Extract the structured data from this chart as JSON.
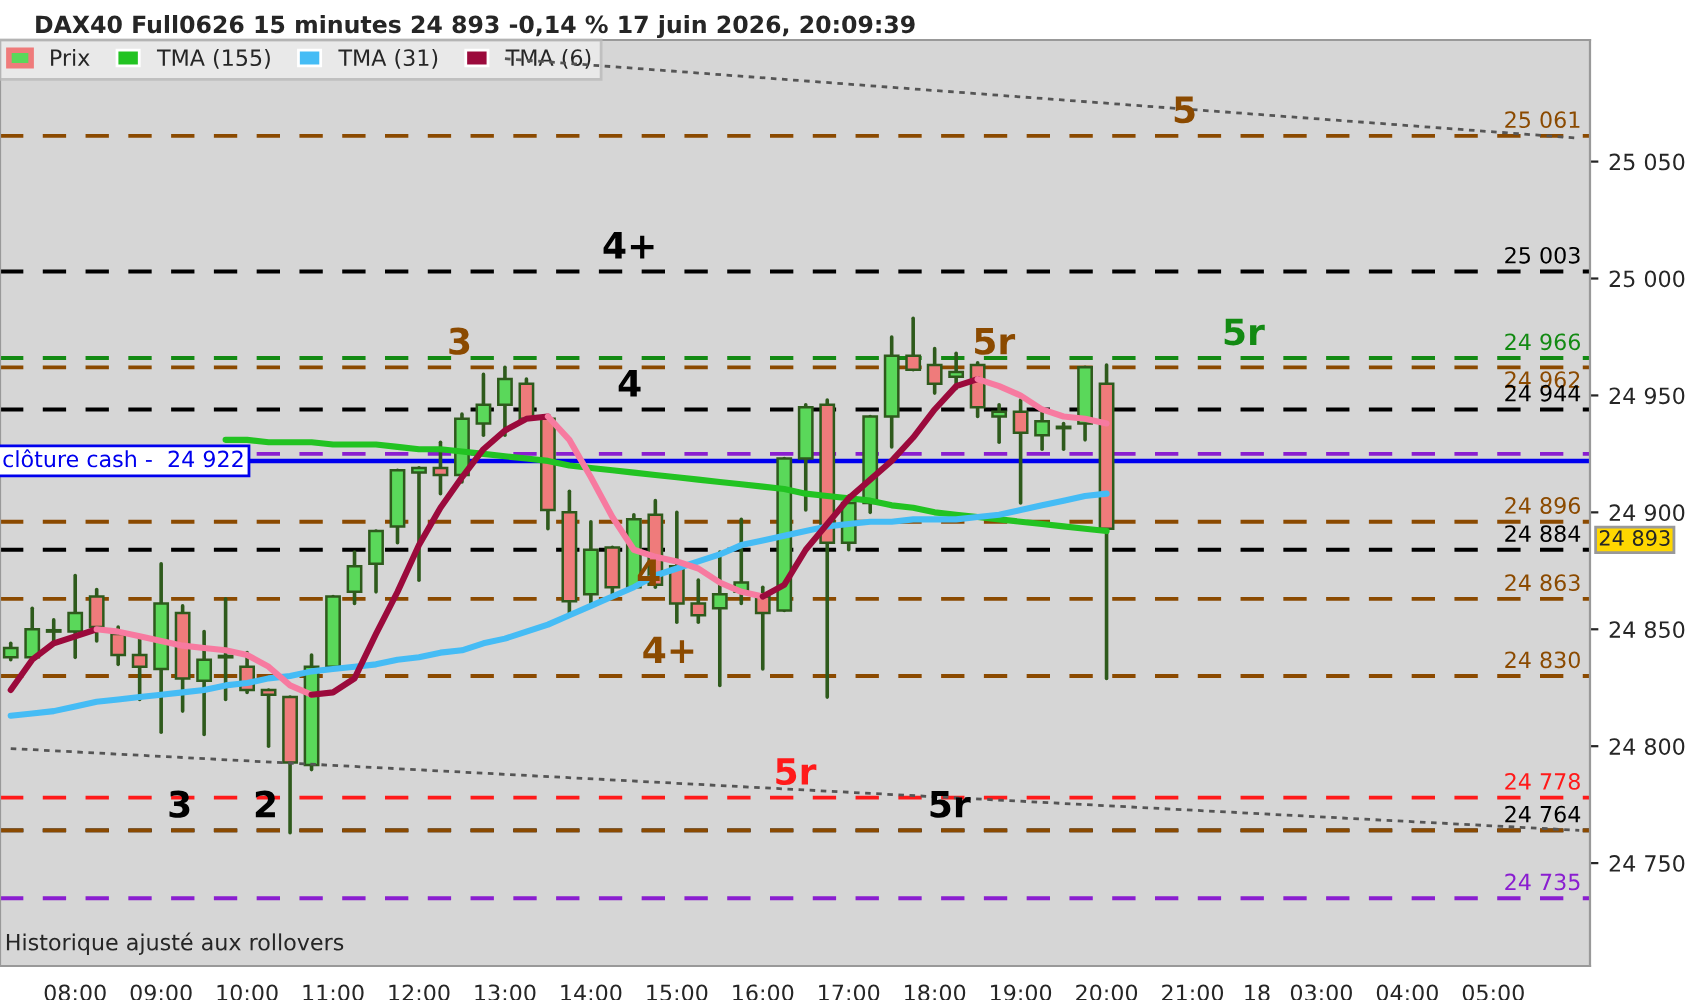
{
  "chart_data": {
    "type": "candlestick",
    "title": "DAX40 Full0626 15 minutes 24 893 -0,14 % 17 juin 2026, 20:09:39",
    "categories": [
      null,
      null,
      null,
      "08:00",
      null,
      null,
      null,
      "09:00",
      null,
      null,
      null,
      "10:00",
      null,
      null,
      null,
      "11:00",
      null,
      null,
      null,
      "12:00",
      null,
      null,
      null,
      "13:00",
      null,
      null,
      null,
      "14:00",
      null,
      null,
      null,
      "15:00",
      null,
      null,
      null,
      "16:00",
      null,
      null,
      null,
      "17:00",
      null,
      null,
      null,
      "18:00",
      null,
      null,
      null,
      "19:00",
      null,
      null,
      null,
      "20:00",
      null,
      null,
      null,
      "21:00",
      null,
      null,
      "18",
      null,
      null,
      "03:00",
      null,
      null,
      null,
      "04:00",
      null,
      null,
      null,
      "05:00",
      null,
      null,
      null,
      null
    ],
    "series": [
      {
        "name": "Prix",
        "ohlc": [
          [
            24838,
            24844,
            24837,
            24842
          ],
          [
            24838,
            24859,
            24838,
            24850
          ],
          [
            24849,
            24854,
            24844,
            24849
          ],
          [
            24849,
            24873,
            24838,
            24857
          ],
          [
            24864,
            24867,
            24845,
            24851
          ],
          [
            24848,
            24851,
            24835,
            24839
          ],
          [
            24839,
            24846,
            24820,
            24834
          ],
          [
            24833,
            24878,
            24806,
            24861
          ],
          [
            24857,
            24860,
            24815,
            24829
          ],
          [
            24828,
            24849,
            24805,
            24837
          ],
          [
            24838,
            24863,
            24820,
            24838
          ],
          [
            24834,
            24840,
            24823,
            24824
          ],
          [
            24824,
            24824,
            24800,
            24822
          ],
          [
            24821,
            24821,
            24763,
            24793
          ],
          [
            24792,
            24839,
            24790,
            24834
          ],
          [
            24834,
            24864,
            24834,
            24864
          ],
          [
            24866,
            24883,
            24861,
            24877
          ],
          [
            24878,
            24892,
            24866,
            24892
          ],
          [
            24894,
            24918,
            24887,
            24918
          ],
          [
            24917,
            24919,
            24871,
            24919
          ],
          [
            24919,
            24930,
            24908,
            24916
          ],
          [
            24916,
            24942,
            24913,
            24940
          ],
          [
            24938,
            24959,
            24933,
            24946
          ],
          [
            24946,
            24962,
            24933,
            24957
          ],
          [
            24955,
            24957,
            24940,
            24940
          ],
          [
            24940,
            24940,
            24893,
            24901
          ],
          [
            24900,
            24909,
            24857,
            24862
          ],
          [
            24865,
            24896,
            24860,
            24884
          ],
          [
            24885,
            24885,
            24864,
            24868
          ],
          [
            24868,
            24899,
            24868,
            24897
          ],
          [
            24899,
            24905,
            24868,
            24869
          ],
          [
            24877,
            24900,
            24853,
            24861
          ],
          [
            24861,
            24871,
            24853,
            24856
          ],
          [
            24859,
            24883,
            24826,
            24865
          ],
          [
            24866,
            24897,
            24861,
            24870
          ],
          [
            24864,
            24868,
            24833,
            24857
          ],
          [
            24858,
            24923,
            24858,
            24923
          ],
          [
            24923,
            24946,
            24901,
            24945
          ],
          [
            24946,
            24948,
            24821,
            24887
          ],
          [
            24887,
            24907,
            24884,
            24904
          ],
          [
            24904,
            24941,
            24900,
            24941
          ],
          [
            24941,
            24975,
            24928,
            24967
          ],
          [
            24967,
            24983,
            24961,
            24961
          ],
          [
            24963,
            24970,
            24951,
            24955
          ],
          [
            24958,
            24968,
            24953,
            24960
          ],
          [
            24963,
            24964,
            24941,
            24945
          ],
          [
            24941,
            24946,
            24930,
            24943
          ],
          [
            24943,
            24948,
            24904,
            24934
          ],
          [
            24933,
            24944,
            24927,
            24939
          ],
          [
            24936,
            24938,
            24927,
            24936
          ],
          [
            24938,
            24962,
            24931,
            24962
          ],
          [
            24955,
            24963,
            24829,
            24893
          ],
          null,
          null,
          null,
          null,
          null,
          null,
          null,
          null,
          null,
          null,
          null,
          null,
          null,
          null,
          null,
          null,
          null,
          null,
          null,
          null,
          null,
          null
        ],
        "colors": [
          "#5ad85a",
          "#5ad85a",
          "#5ad85a",
          "#5ad85a",
          "#ef7b7b",
          "#ef7b7b",
          "#ef7b7b",
          "#5ad85a",
          "#ef7b7b",
          "#5ad85a",
          "#5ad85a",
          "#ef7b7b",
          "#ef7b7b",
          "#ef7b7b",
          "#5ad85a",
          "#5ad85a",
          "#5ad85a",
          "#5ad85a",
          "#5ad85a",
          "#5ad85a",
          "#ef7b7b",
          "#5ad85a",
          "#5ad85a",
          "#5ad85a",
          "#ef7b7b",
          "#ef7b7b",
          "#ef7b7b",
          "#5ad85a",
          "#ef7b7b",
          "#5ad85a",
          "#ef7b7b",
          "#ef7b7b",
          "#ef7b7b",
          "#5ad85a",
          "#5ad85a",
          "#ef7b7b",
          "#5ad85a",
          "#5ad85a",
          "#ef7b7b",
          "#5ad85a",
          "#5ad85a",
          "#5ad85a",
          "#ef7b7b",
          "#ef7b7b",
          "#5ad85a",
          "#ef7b7b",
          "#5ad85a",
          "#ef7b7b",
          "#5ad85a",
          "#5ad85a",
          "#5ad85a",
          "#ef7b7b",
          null,
          null,
          null,
          null,
          null,
          null,
          null,
          null,
          null,
          null,
          null,
          null,
          null,
          null,
          null,
          null,
          null,
          null,
          null,
          null,
          null,
          null
        ],
        "value_labels": [
          null,
          null,
          null,
          null,
          null,
          null,
          null,
          null,
          null,
          null,
          null,
          null,
          null,
          null,
          null,
          null,
          null,
          null,
          null,
          null,
          null,
          null,
          null,
          null,
          null,
          null,
          null,
          null,
          null,
          null,
          null,
          null,
          null,
          null,
          null,
          null,
          null,
          null,
          null,
          null,
          null,
          null,
          null,
          null,
          null,
          null,
          null,
          null,
          null,
          null,
          null,
          "24 893",
          null,
          null,
          null,
          null,
          null,
          null,
          null,
          null,
          null,
          null,
          null,
          null,
          null,
          null,
          null,
          null,
          null,
          null,
          null,
          null,
          null,
          null
        ]
      },
      {
        "type": "line",
        "name": "TMA (155)",
        "color": "#22c322",
        "values": [
          null,
          null,
          null,
          null,
          null,
          null,
          null,
          null,
          null,
          null,
          24931,
          24931,
          24930,
          24930,
          24930,
          24929,
          24929,
          24929,
          24928,
          24927,
          24927,
          24926,
          24925,
          24924,
          24923,
          24922,
          24920,
          24919,
          24918,
          24917,
          24916,
          24915,
          24914,
          24913,
          24912,
          24911,
          24910,
          24908,
          24907,
          24906,
          24905,
          24903,
          24902,
          24900,
          24899,
          24898,
          24897,
          24896,
          24895,
          24894,
          24893,
          24892,
          null,
          null,
          null,
          null,
          null,
          null,
          null,
          null,
          null,
          null,
          null,
          null,
          null,
          null,
          null,
          null,
          null,
          null,
          null,
          null,
          null,
          null
        ]
      },
      {
        "type": "line",
        "name": "TMA (31)",
        "color": "#45bcf5",
        "values": [
          24813,
          24814,
          24815,
          24817,
          24819,
          24820,
          24821,
          24822,
          24823,
          24824,
          24826,
          24827,
          24829,
          24830,
          24832,
          24833,
          24834,
          24835,
          24837,
          24838,
          24840,
          24841,
          24844,
          24846,
          24849,
          24852,
          24856,
          24860,
          24864,
          24868,
          24873,
          24876,
          24879,
          24882,
          24886,
          24888,
          24890,
          24892,
          24894,
          24895,
          24896,
          24896,
          24897,
          24897,
          24897,
          24898,
          24899,
          24901,
          24903,
          24905,
          24907,
          24908,
          null,
          null,
          null,
          null,
          null,
          null,
          null,
          null,
          null,
          null,
          null,
          null,
          null,
          null,
          null,
          null,
          null,
          null,
          null,
          null,
          null,
          null
        ]
      },
      {
        "type": "line",
        "name": "TMA (6)",
        "color": "#9b0a3c",
        "values": [
          24824,
          24837,
          24844,
          24847,
          24850,
          null,
          null,
          null,
          null,
          null,
          null,
          null,
          null,
          null,
          null,
          null,
          null,
          null,
          null,
          null,
          null,
          null,
          null,
          null,
          null,
          null,
          null,
          null,
          null,
          null,
          null,
          null,
          null,
          null,
          null,
          null,
          null,
          null,
          null,
          null,
          null,
          null,
          null,
          null,
          null,
          null,
          null,
          null,
          null,
          null,
          null,
          null,
          null,
          null,
          null,
          null,
          null,
          null,
          null,
          null,
          null,
          null,
          null,
          null,
          null,
          null,
          null,
          null,
          null,
          null,
          null,
          null,
          null,
          null
        ]
      },
      {
        "type": "line",
        "color": "#f77aa0",
        "values": [
          null,
          null,
          null,
          null,
          24850,
          24849,
          24847,
          24845,
          24843,
          24842,
          24841,
          24839,
          24834,
          24826,
          24822,
          null,
          null,
          null,
          null,
          null,
          null,
          null,
          null,
          null,
          null,
          null,
          null,
          null,
          null,
          null,
          null,
          null,
          null,
          null,
          null,
          null,
          null,
          null,
          null,
          null,
          null,
          null,
          null,
          null,
          null,
          null,
          null,
          null,
          null,
          null,
          null,
          null,
          null,
          null,
          null,
          null,
          null,
          null,
          null,
          null,
          null,
          null,
          null,
          null,
          null,
          null,
          null,
          null,
          null,
          null,
          null,
          null,
          null,
          null
        ]
      },
      {
        "type": "line",
        "color": "#9b0a3c",
        "values": [
          null,
          null,
          null,
          null,
          null,
          null,
          null,
          null,
          null,
          null,
          null,
          null,
          null,
          null,
          24822,
          24823,
          24829,
          24848,
          24866,
          24886,
          24902,
          24915,
          24927,
          24935,
          24940,
          24941,
          null,
          null,
          null,
          null,
          null,
          null,
          null,
          null,
          null,
          null,
          null,
          null,
          null,
          null,
          null,
          null,
          null,
          null,
          null,
          null,
          null,
          null,
          null,
          null,
          null,
          null,
          null,
          null,
          null,
          null,
          null,
          null,
          null,
          null,
          null,
          null,
          null,
          null,
          null,
          null,
          null,
          null,
          null,
          null,
          null,
          null,
          null,
          null
        ]
      },
      {
        "type": "line",
        "color": "#f77aa0",
        "values": [
          null,
          null,
          null,
          null,
          null,
          null,
          null,
          null,
          null,
          null,
          null,
          null,
          null,
          null,
          null,
          null,
          null,
          null,
          null,
          null,
          null,
          null,
          null,
          null,
          null,
          24941,
          24931,
          24915,
          24898,
          24884,
          24881,
          24879,
          24876,
          24870,
          24866,
          24864,
          null,
          null,
          null,
          null,
          null,
          null,
          null,
          null,
          null,
          null,
          null,
          null,
          null,
          null,
          null,
          null,
          null,
          null,
          null,
          null,
          null,
          null,
          null,
          null,
          null,
          null,
          null,
          null,
          null,
          null,
          null,
          null,
          null,
          null,
          null,
          null,
          null,
          null
        ]
      },
      {
        "type": "line",
        "color": "#9b0a3c",
        "values": [
          null,
          null,
          null,
          null,
          null,
          null,
          null,
          null,
          null,
          null,
          null,
          null,
          null,
          null,
          null,
          null,
          null,
          null,
          null,
          null,
          null,
          null,
          null,
          null,
          null,
          null,
          null,
          null,
          null,
          null,
          null,
          null,
          null,
          null,
          null,
          24864,
          24869,
          24884,
          24895,
          24906,
          24914,
          24922,
          24932,
          24944,
          24954,
          24957,
          null,
          null,
          null,
          null,
          null,
          null,
          null,
          null,
          null,
          null,
          null,
          null,
          null,
          null,
          null,
          null,
          null,
          null,
          null,
          null,
          null,
          null,
          null,
          null,
          null,
          null,
          null,
          null
        ]
      },
      {
        "type": "line",
        "color": "#f77aa0",
        "values": [
          null,
          null,
          null,
          null,
          null,
          null,
          null,
          null,
          null,
          null,
          null,
          null,
          null,
          null,
          null,
          null,
          null,
          null,
          null,
          null,
          null,
          null,
          null,
          null,
          null,
          null,
          null,
          null,
          null,
          null,
          null,
          null,
          null,
          null,
          null,
          null,
          null,
          null,
          null,
          null,
          null,
          null,
          null,
          null,
          null,
          24957,
          24954,
          24950,
          24944,
          24941,
          24940,
          24938,
          null,
          null,
          null,
          null,
          null,
          null,
          null,
          null,
          null,
          null,
          null,
          null,
          null,
          null,
          null,
          null,
          null,
          null,
          null,
          null,
          null,
          null
        ]
      },
      {
        "type": "line",
        "color": "#555555",
        "line_style": "dotted",
        "values": [
          null,
          null,
          null,
          null,
          null,
          null,
          null,
          null,
          null,
          null,
          null,
          null,
          null,
          null,
          null,
          null,
          null,
          null,
          null,
          null,
          null,
          null,
          null,
          25094,
          null,
          null,
          null,
          null,
          null,
          null,
          null,
          null,
          null,
          null,
          null,
          null,
          null,
          null,
          null,
          null,
          null,
          null,
          null,
          null,
          null,
          null,
          null,
          null,
          null,
          null,
          null,
          null,
          null,
          null,
          null,
          null,
          null,
          null,
          null,
          null,
          null,
          null,
          null,
          null,
          null,
          null,
          null,
          null,
          null,
          null,
          null,
          null,
          null,
          25060
        ]
      },
      {
        "type": "line",
        "color": "#555555",
        "line_style": "dotted",
        "values": [
          24799,
          null,
          null,
          null,
          null,
          null,
          null,
          null,
          null,
          null,
          null,
          null,
          null,
          null,
          null,
          null,
          null,
          null,
          null,
          null,
          null,
          null,
          null,
          null,
          null,
          null,
          null,
          null,
          null,
          null,
          null,
          null,
          null,
          null,
          null,
          null,
          null,
          null,
          null,
          null,
          null,
          null,
          null,
          null,
          null,
          null,
          null,
          null,
          null,
          null,
          null,
          null,
          null,
          null,
          null,
          null,
          null,
          null,
          null,
          null,
          null,
          null,
          null,
          null,
          null,
          null,
          null,
          null,
          null,
          null,
          null,
          null,
          null,
          24764
        ]
      }
    ],
    "ylim": [
      24706,
      25102
    ],
    "yticks": [
      {
        "value": 24750,
        "label": "24 750"
      },
      {
        "value": 24800,
        "label": "24 800"
      },
      {
        "value": 24850,
        "label": "24 850"
      },
      {
        "value": 24900,
        "label": "24 900"
      },
      {
        "value": 24950,
        "label": "24 950"
      },
      {
        "value": 25000,
        "label": "25 000"
      },
      {
        "value": 25050,
        "label": "25 050"
      }
    ],
    "ref_lines": [
      {
        "axis": "y",
        "value": 25061,
        "label": "25 061",
        "color": "#8b4a00",
        "line_style": "dashed"
      },
      {
        "axis": "y",
        "value": 25003,
        "label": "25 003",
        "color": "#000000",
        "line_style": "dashed"
      },
      {
        "axis": "y",
        "value": 24966,
        "label": "24 966",
        "color": "#138a13",
        "line_style": "dashed"
      },
      {
        "axis": "y",
        "value": 24962,
        "label": "24 962",
        "color": "#8b4a00",
        "line_style": "dashed"
      },
      {
        "axis": "y",
        "value": 24944,
        "label": "24 944",
        "color": "#000000",
        "line_style": "dashed"
      },
      {
        "axis": "y",
        "value": 24925,
        "color": "#8a1ed0",
        "line_style": "dashed"
      },
      {
        "axis": "y",
        "value": 24922,
        "label": "clôture cash -  24 922",
        "color": "#0000ee",
        "line_style": "solid"
      },
      {
        "axis": "y",
        "value": 24896,
        "label": "24 896",
        "color": "#8b4a00",
        "line_style": "dashed"
      },
      {
        "axis": "y",
        "value": 24884,
        "label": "24 884",
        "color": "#000000",
        "line_style": "dashed"
      },
      {
        "axis": "y",
        "value": 24863,
        "label": "24 863",
        "color": "#8b4a00",
        "line_style": "dashed"
      },
      {
        "axis": "y",
        "value": 24830,
        "label": "24 830",
        "color": "#8b4a00",
        "line_style": "dashed"
      },
      {
        "axis": "y",
        "value": 24778,
        "label": "24 778",
        "color": "#ff1a1a",
        "line_style": "dashed"
      },
      {
        "axis": "y",
        "value": 24764,
        "label": "24 764",
        "color": "#000000",
        "line_style": "dashed"
      },
      {
        "axis": "y",
        "value": 24764,
        "color": "#8b4a00",
        "line_style": "dashed"
      },
      {
        "axis": "y",
        "value": 24735,
        "label": "24 735",
        "color": "#8a1ed0",
        "line_style": "dashed"
      }
    ],
    "annotations": [
      {
        "text": "5",
        "y": 25061
      },
      {
        "text": "4+",
        "y": 25003
      },
      {
        "text": "5r",
        "y": 24966
      },
      {
        "text": "3",
        "y": 24962
      },
      {
        "text": "5r",
        "y": 24962
      },
      {
        "text": "4",
        "y": 24944
      },
      {
        "text": "4",
        "y": 24863
      },
      {
        "text": "4+",
        "y": 24830
      },
      {
        "text": "5r",
        "y": 24778
      },
      {
        "text": "3",
        "y": 24764
      },
      {
        "text": "2",
        "y": 24764
      },
      {
        "text": "5r",
        "y": 24764
      },
      "Historique ajusté aux rollovers"
    ],
    "legend": "top left",
    "grid": false
  }
}
